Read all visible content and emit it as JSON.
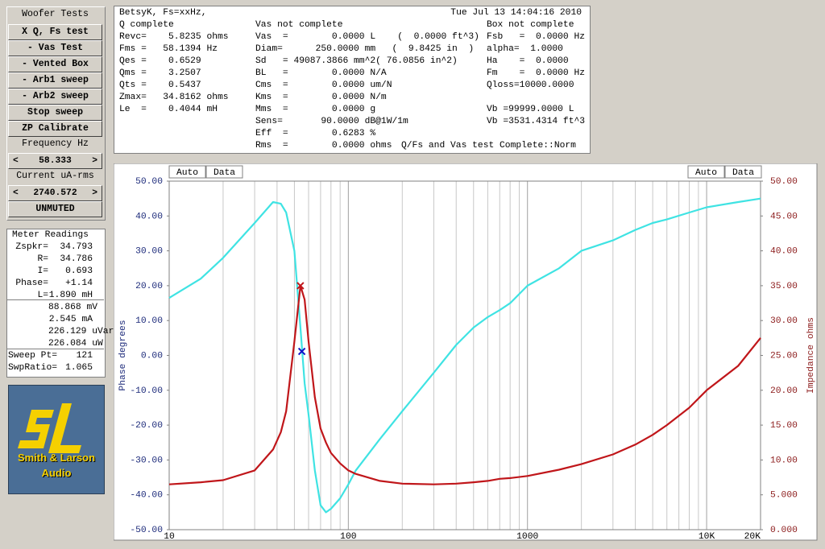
{
  "sidebar": {
    "title": "Woofer Tests",
    "buttons": [
      "X Q, Fs test",
      "- Vas Test",
      "- Vented Box",
      "- Arb1 sweep",
      "- Arb2 sweep",
      "Stop sweep",
      "ZP Calibrate"
    ],
    "frequency": {
      "label": "Frequency Hz",
      "prev": "<",
      "value": "58.333",
      "next": ">"
    },
    "current": {
      "label": "Current uA-rms",
      "prev": "<",
      "value": "2740.572",
      "next": ">"
    },
    "mute": "UNMUTED"
  },
  "meter": {
    "title": "Meter Readings",
    "rows": [
      {
        "label": "Zspkr=",
        "value": "34.793"
      },
      {
        "label": "R=",
        "value": "34.786"
      },
      {
        "label": "I=",
        "value": "0.693"
      },
      {
        "label": "Phase=",
        "value": "+1.14"
      },
      {
        "label": "L=",
        "value": "1.890 mH"
      },
      {
        "value": "88.868 mV"
      },
      {
        "value": "2.545 mA"
      },
      {
        "value": "226.129 uVar"
      },
      {
        "value": "226.084 uW"
      },
      {
        "label": "Sweep Pt=",
        "value": "121"
      },
      {
        "label": "SwpRatio=",
        "value": "1.065"
      }
    ]
  },
  "logo": {
    "line1": "Smith & Larson",
    "line2": "Audio"
  },
  "info": {
    "name": "BetsyK, Fs=xxHz,",
    "timestamp": "Tue Jul 13 14:04:16 2010",
    "columns": [
      {
        "lines": [
          "Q complete",
          "Revc=    5.8235 ohms",
          "Fms =   58.1394 Hz",
          "Qes =    0.6529",
          "Qms =    3.2507",
          "Qts =    0.5437",
          "Zmax=   34.8162 ohms",
          "Le  =    0.4044 mH"
        ]
      },
      {
        "lines": [
          "Vas not complete",
          "Vas  =        0.0000 L    (  0.0000 ft^3)",
          "Diam=      250.0000 mm   (  9.8425 in  )",
          "Sd   = 49087.3866 mm^2( 76.0856 in^2)",
          "BL   =        0.0000 N/A",
          "Cms  =        0.0000 um/N",
          "Kms  =        0.0000 N/m",
          "Mms  =        0.0000 g",
          "Sens=       90.0000 dB@1W/1m",
          "Eff  =        0.6283 %",
          "Rms  =        0.0000 ohms"
        ]
      },
      {
        "lines": [
          "Box not complete",
          "Fsb   =  0.0000 Hz",
          "alpha=  1.0000",
          "Ha    =  0.0000",
          "Fm    =  0.0000 Hz",
          "Qloss=10000.0000"
        ]
      }
    ],
    "box_volume": [
      "Vb =99999.0000 L",
      "Vb =3531.4314 ft^3"
    ],
    "status": "Q/Fs and Vas test Complete::Norm"
  },
  "chart_data": {
    "type": "line",
    "buttons": [
      "Auto",
      "Data"
    ],
    "y_label": "Phase degrees",
    "y2_label": "Impedance ohms",
    "log_x": true,
    "xlim": [
      10,
      20000
    ],
    "xticks": [
      10,
      100,
      1000,
      {
        "value": 10000,
        "label": "10K"
      },
      {
        "value": 20000,
        "label": "20K"
      }
    ],
    "xgrid": [
      20,
      30,
      40,
      50,
      60,
      70,
      80,
      90,
      200,
      300,
      400,
      500,
      600,
      700,
      800,
      900,
      2000,
      3000,
      4000,
      5000,
      6000,
      7000,
      8000,
      9000
    ],
    "ylim": [
      -50,
      50
    ],
    "yticks": [
      {
        "value": 50,
        "label": "50.00"
      },
      {
        "value": 40,
        "label": "40.00"
      },
      {
        "value": 30,
        "label": "30.00"
      },
      {
        "value": 20,
        "label": "20.00"
      },
      {
        "value": 10,
        "label": "10.00"
      },
      {
        "value": 0,
        "label": "0.00"
      },
      {
        "value": -10,
        "label": "-10.00"
      },
      {
        "value": -20,
        "label": "-20.00"
      },
      {
        "value": -30,
        "label": "-30.00"
      },
      {
        "value": -40,
        "label": "-40.00"
      },
      {
        "value": -50,
        "label": "-50.00"
      }
    ],
    "y2lim": [
      0,
      50
    ],
    "y2ticks": [
      {
        "value": 50,
        "label": "50.00"
      },
      {
        "value": 45,
        "label": "45.00"
      },
      {
        "value": 40,
        "label": "40.00"
      },
      {
        "value": 35,
        "label": "35.00"
      },
      {
        "value": 30,
        "label": "30.00"
      },
      {
        "value": 25,
        "label": "25.00"
      },
      {
        "value": 20,
        "label": "20.00"
      },
      {
        "value": 15,
        "label": "15.00"
      },
      {
        "value": 10,
        "label": "10.00"
      },
      {
        "value": 5,
        "label": "5.000"
      },
      {
        "value": 0,
        "label": "0.000"
      }
    ],
    "x": [
      10,
      15,
      20,
      30,
      38,
      42,
      45,
      50,
      54,
      57,
      60,
      65,
      70,
      75,
      80,
      90,
      100,
      110,
      150,
      200,
      300,
      400,
      500,
      600,
      700,
      800,
      1000,
      1500,
      2000,
      3000,
      4000,
      5000,
      6000,
      8000,
      10000,
      15000,
      20000
    ],
    "series": [
      {
        "name": "Phase",
        "color": "#3fe3e3",
        "axis": "y",
        "values": [
          16.5,
          22,
          28,
          38,
          44,
          43.5,
          41,
          30,
          8,
          -8,
          -17,
          -33,
          -43,
          -45,
          -44,
          -41,
          -37,
          -33,
          -24,
          -16,
          -5,
          3,
          8,
          11,
          13,
          15,
          20,
          25,
          30,
          33,
          36,
          38,
          39,
          41,
          42.5,
          44,
          45
        ]
      },
      {
        "name": "Impedance",
        "color": "#c0161a",
        "axis": "y2",
        "values": [
          6.5,
          6.8,
          7.1,
          8.5,
          11.5,
          14,
          17,
          27,
          35,
          33,
          27,
          19,
          14.5,
          12.5,
          11,
          9.5,
          8.5,
          8,
          7,
          6.6,
          6.5,
          6.6,
          6.8,
          7,
          7.3,
          7.4,
          7.7,
          8.6,
          9.4,
          10.8,
          12.2,
          13.6,
          15,
          17.5,
          20,
          23.5,
          27.5
        ]
      }
    ],
    "markers": [
      {
        "x": 54,
        "value": 35,
        "axis": "y2",
        "color": "#c0161a"
      },
      {
        "x": 55,
        "value": 1.14,
        "axis": "y",
        "color": "#1010c8"
      }
    ]
  }
}
